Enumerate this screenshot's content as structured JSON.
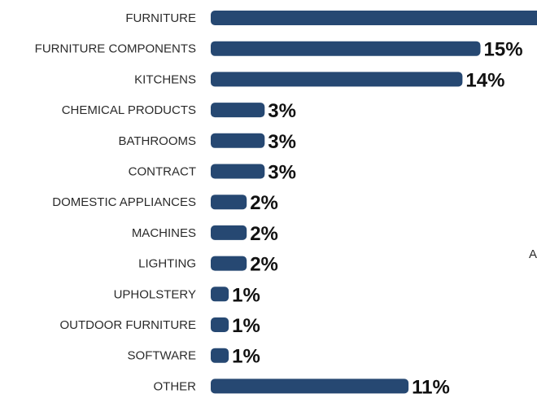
{
  "chart_data": {
    "type": "bar",
    "orientation": "horizontal",
    "categories": [
      "FURNITURE",
      "FURNITURE COMPONENTS",
      "KITCHENS",
      "CHEMICAL PRODUCTS",
      "BATHROOMS",
      "CONTRACT",
      "DOMESTIC APPLIANCES",
      "MACHINES",
      "LIGHTING",
      "UPHOLSTERY",
      "OUTDOOR FURNITURE",
      "SOFTWARE",
      "OTHER"
    ],
    "values": [
      null,
      15,
      14,
      3,
      3,
      3,
      2,
      2,
      2,
      1,
      1,
      1,
      11
    ],
    "value_labels": [
      "",
      "15%",
      "14%",
      "3%",
      "3%",
      "3%",
      "2%",
      "2%",
      "2%",
      "1%",
      "1%",
      "1%",
      "11%"
    ],
    "title": "",
    "xlabel": "",
    "ylabel": "",
    "grid": false,
    "legend": "none",
    "colors": {
      "bar": "#264872"
    }
  },
  "stray_text": "A"
}
